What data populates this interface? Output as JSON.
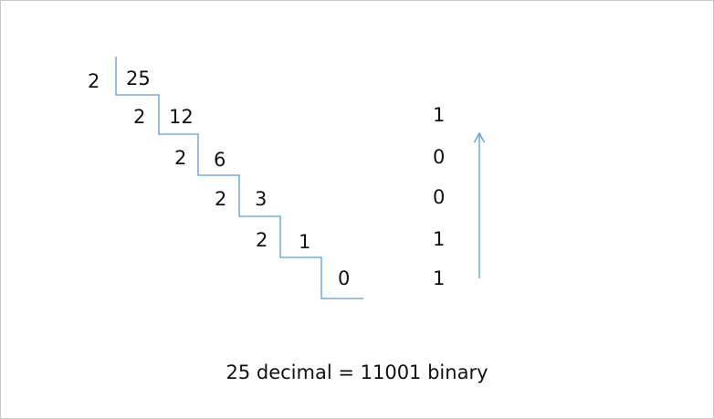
{
  "divisions": [
    {
      "divisor": "2",
      "dividend": "25"
    },
    {
      "divisor": "2",
      "dividend": "12"
    },
    {
      "divisor": "2",
      "dividend": "6"
    },
    {
      "divisor": "2",
      "dividend": "3"
    },
    {
      "divisor": "2",
      "dividend": "1"
    }
  ],
  "final_quotient": "0",
  "remainders": [
    "1",
    "0",
    "0",
    "1",
    "1"
  ],
  "caption": "25 decimal = 11001 binary",
  "colors": {
    "line": "#5b9bd5",
    "text": "#111111",
    "border": "#c8c8c8"
  }
}
